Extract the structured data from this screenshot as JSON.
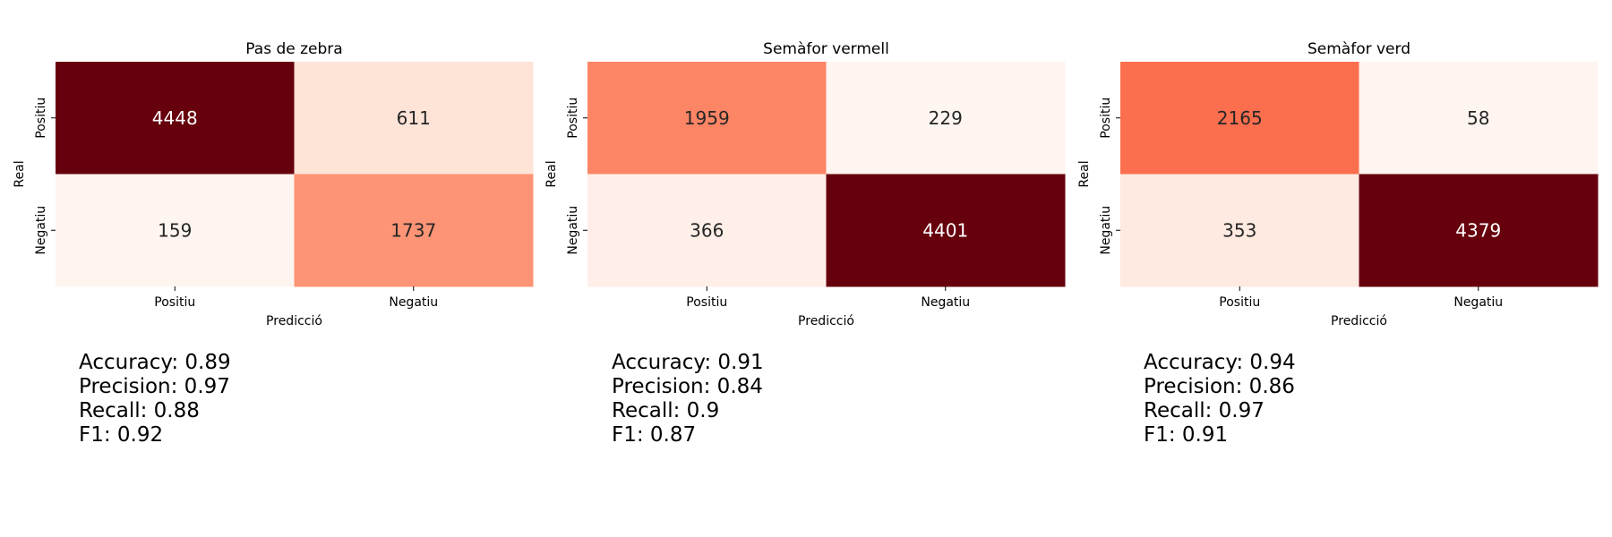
{
  "chart_data": [
    {
      "type": "heatmap",
      "title": "Pas de zebra",
      "xlabel": "Predicció",
      "ylabel": "Real",
      "x_categories": [
        "Positiu",
        "Negatiu"
      ],
      "y_categories": [
        "Positiu",
        "Negatiu"
      ],
      "values": [
        [
          4448,
          611
        ],
        [
          159,
          1737
        ]
      ],
      "colormap": "Reds",
      "colorbar": false,
      "metrics": [
        "Accuracy: 0.89",
        "Precision: 0.97",
        "Recall: 0.88",
        "F1: 0.92"
      ]
    },
    {
      "type": "heatmap",
      "title": "Semàfor vermell",
      "xlabel": "Predicció",
      "ylabel": "Real",
      "x_categories": [
        "Positiu",
        "Negatiu"
      ],
      "y_categories": [
        "Positiu",
        "Negatiu"
      ],
      "values": [
        [
          1959,
          229
        ],
        [
          366,
          4401
        ]
      ],
      "colormap": "Reds",
      "colorbar": false,
      "metrics": [
        "Accuracy: 0.91",
        "Precision: 0.84",
        "Recall: 0.9",
        "F1: 0.87"
      ]
    },
    {
      "type": "heatmap",
      "title": "Semàfor verd",
      "xlabel": "Predicció",
      "ylabel": "Real",
      "x_categories": [
        "Positiu",
        "Negatiu"
      ],
      "y_categories": [
        "Positiu",
        "Negatiu"
      ],
      "values": [
        [
          2165,
          58
        ],
        [
          353,
          4379
        ]
      ],
      "colormap": "Reds",
      "colorbar": false,
      "metrics": [
        "Accuracy: 0.94",
        "Precision: 0.86",
        "Recall: 0.97",
        "F1: 0.91"
      ]
    }
  ]
}
